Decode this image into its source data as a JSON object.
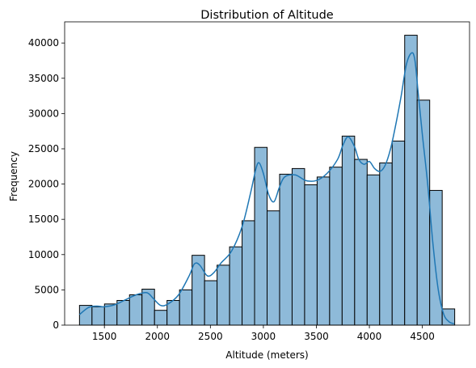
{
  "chart_data": {
    "type": "bar",
    "title": "Distribution of Altitude",
    "xlabel": "Altitude (meters)",
    "ylabel": "Frequency",
    "xlim": [
      1125,
      4945
    ],
    "ylim": [
      0,
      43000
    ],
    "xticks": [
      1500,
      2000,
      2500,
      3000,
      3500,
      4000,
      4500
    ],
    "yticks": [
      0,
      5000,
      10000,
      15000,
      20000,
      25000,
      30000,
      35000,
      40000
    ],
    "bin_edges": [
      1265,
      1383,
      1501,
      1619,
      1737,
      1855,
      1973,
      2091,
      2209,
      2327,
      2445,
      2563,
      2681,
      2799,
      2917,
      3035,
      3153,
      3271,
      3389,
      3507,
      3625,
      3743,
      3861,
      3979,
      4097,
      4215,
      4333,
      4451,
      4569,
      4687,
      4805
    ],
    "values": [
      2800,
      2600,
      3000,
      3500,
      4300,
      5100,
      2100,
      3500,
      5000,
      9900,
      6300,
      8500,
      11100,
      14800,
      25200,
      16200,
      21400,
      22200,
      19900,
      21000,
      22400,
      26800,
      23500,
      21300,
      23000,
      26100,
      41100,
      31900,
      19100,
      2300
    ],
    "kde": {
      "x": [
        1265,
        1350,
        1430,
        1500,
        1600,
        1700,
        1800,
        1900,
        1960,
        2030,
        2100,
        2200,
        2300,
        2350,
        2400,
        2470,
        2530,
        2600,
        2700,
        2800,
        2880,
        2930,
        2960,
        3000,
        3050,
        3100,
        3150,
        3200,
        3300,
        3400,
        3500,
        3600,
        3700,
        3750,
        3800,
        3860,
        3900,
        3950,
        4000,
        4050,
        4100,
        4150,
        4200,
        4250,
        4300,
        4350,
        4400,
        4430,
        4460,
        4500,
        4550,
        4600,
        4650,
        4700,
        4750,
        4800
      ],
      "y": [
        1500,
        2500,
        2700,
        2600,
        2900,
        3600,
        4300,
        4600,
        3800,
        2800,
        3000,
        4300,
        7000,
        8700,
        8500,
        7000,
        7400,
        8800,
        10500,
        14000,
        18800,
        22200,
        23000,
        21500,
        18500,
        17500,
        19500,
        21000,
        21300,
        20500,
        20500,
        21500,
        23500,
        25500,
        26700,
        25300,
        23500,
        22800,
        23200,
        22200,
        21800,
        22700,
        25000,
        28500,
        32500,
        37000,
        38600,
        37500,
        33000,
        27000,
        20000,
        11500,
        5000,
        1600,
        500,
        200
      ]
    },
    "bar_fill": "#8ebad9",
    "bar_edge": "#000000",
    "line_color": "#1f77b4",
    "grid": false,
    "legend": "none"
  }
}
